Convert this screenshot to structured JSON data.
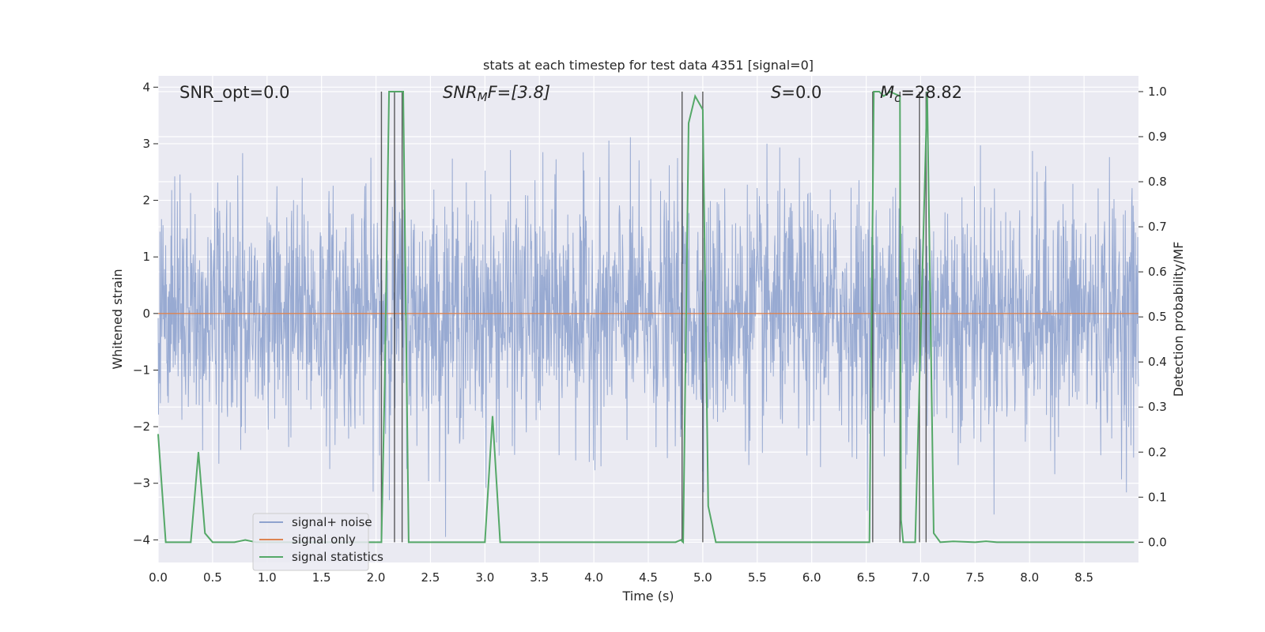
{
  "chart_data": {
    "type": "line",
    "title": "stats at each timestep for test data 4351 [signal=0]",
    "xlabel": "Time (s)",
    "ylabel": "Whitened strain",
    "ylabel_right": "Detection probability/MF",
    "xlim": [
      0,
      9
    ],
    "ylim": [
      -4.4,
      4.2
    ],
    "ylim_right": [
      -0.045,
      1.035
    ],
    "x_ticks": [
      "0.0",
      "0.5",
      "1.0",
      "1.5",
      "2.0",
      "2.5",
      "3.0",
      "3.5",
      "4.0",
      "4.5",
      "5.0",
      "5.5",
      "6.0",
      "6.5",
      "7.0",
      "7.5",
      "8.0",
      "8.5"
    ],
    "y_ticks": [
      "−4",
      "−3",
      "−2",
      "−1",
      "0",
      "1",
      "2",
      "3",
      "4"
    ],
    "y_ticks_right": [
      "0.0",
      "0.1",
      "0.2",
      "0.3",
      "0.4",
      "0.5",
      "0.6",
      "0.7",
      "0.8",
      "0.9",
      "1.0"
    ],
    "grid": true,
    "legend_position": "lower-left",
    "annotations": {
      "snr_opt": "SNR_opt=0.0",
      "snr_mf_main": "SNR",
      "snr_mf_sub": "M",
      "snr_mf_rest": "F=[3.8]",
      "s_main": "S",
      "s_rest": "=0.0",
      "mc_main": "M",
      "mc_sub": "c",
      "mc_rest": "=28.82"
    },
    "series": [
      {
        "name": "signal+ noise",
        "color": "#8fa3ce",
        "description_values": "whitened noise, approx Gaussian, amplitude spanning about -4 to 3.8",
        "envelope": {
          "core_low": -1.6,
          "core_high": 1.6,
          "min": -4.0,
          "max": 3.8
        }
      },
      {
        "name": "signal only",
        "color": "#dd8452",
        "values_constant": 0
      },
      {
        "name": "signal statistics",
        "color": "#55a868",
        "axis": "right",
        "x": [
          0.0,
          0.07,
          0.15,
          0.3,
          0.37,
          0.43,
          0.5,
          0.7,
          0.8,
          0.9,
          1.0,
          2.05,
          2.08,
          2.12,
          2.25,
          2.3,
          2.35,
          3.0,
          3.07,
          3.14,
          3.2,
          4.75,
          4.8,
          4.82,
          4.87,
          4.93,
          5.0,
          5.05,
          5.12,
          6.53,
          6.55,
          6.57,
          6.62,
          6.66,
          6.72,
          6.81,
          6.82,
          6.84,
          6.9,
          6.95,
          7.0,
          7.06,
          7.12,
          7.18,
          7.3,
          7.5,
          7.6,
          7.7,
          8.96
        ],
        "values": [
          0.24,
          0.0,
          0.0,
          0.0,
          0.2,
          0.02,
          0.0,
          0.0,
          0.005,
          0.0,
          0.0,
          0.0,
          0.35,
          1.0,
          1.0,
          0.0,
          0.0,
          0.0,
          0.28,
          0.0,
          0.0,
          0.0,
          0.005,
          0.0,
          0.93,
          0.99,
          0.96,
          0.08,
          0.0,
          0.0,
          0.5,
          1.0,
          1.0,
          0.99,
          1.0,
          0.99,
          0.05,
          0.0,
          0.0,
          0.0,
          0.45,
          1.0,
          0.02,
          0.0,
          0.002,
          0.0,
          0.002,
          0.0,
          0.0
        ]
      }
    ],
    "vertical_markers": [
      2.05,
      2.17,
      2.24,
      4.81,
      5.0,
      6.56,
      6.81,
      6.99,
      7.05
    ]
  }
}
